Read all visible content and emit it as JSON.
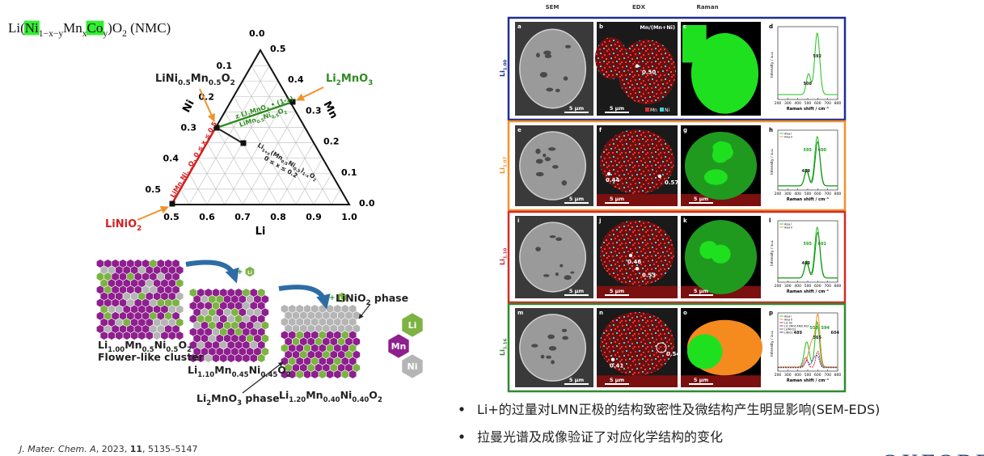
{
  "header": {
    "formula": [
      {
        "t": "Li("
      },
      {
        "t": "Ni",
        "s": "hl"
      },
      {
        "t": "1−x−y",
        "s": "sub"
      },
      {
        "t": "Mn"
      },
      {
        "t": "x",
        "s": "sub"
      },
      {
        "t": "Co",
        "s": "hl"
      },
      {
        "t": "y",
        "s": "sub"
      },
      {
        "t": ")O"
      },
      {
        "t": "2",
        "s": "sub"
      },
      {
        "t": " (NMC)"
      }
    ]
  },
  "ternary": {
    "top_tick": "0.0",
    "left_axis": "Ni",
    "right_axis": "Mn",
    "bottom_axis": "Li",
    "left_ticks": [
      "0.1",
      "0.2",
      "0.3",
      "0.4",
      "0.5"
    ],
    "right_ticks": [
      "0.5",
      "0.4",
      "0.3",
      "0.2",
      "0.1",
      "0.0"
    ],
    "bottom_ticks": [
      "0.5",
      "0.6",
      "0.7",
      "0.8",
      "0.9",
      "1.0"
    ],
    "compounds": [
      {
        "parts": [
          {
            "t": "LiNi"
          },
          {
            "t": "0.5",
            "s": "sub"
          },
          {
            "t": "Mn"
          },
          {
            "t": "0.5",
            "s": "sub"
          },
          {
            "t": "O"
          },
          {
            "t": "2",
            "s": "sub"
          }
        ],
        "color": "#222222"
      },
      {
        "parts": [
          {
            "t": "Li"
          },
          {
            "t": "2",
            "s": "sub"
          },
          {
            "t": "MnO"
          },
          {
            "t": "3",
            "s": "sub"
          }
        ],
        "color": "#2e8b22"
      },
      {
        "parts": [
          {
            "t": "LiNiO"
          },
          {
            "t": "2",
            "s": "sub"
          }
        ],
        "color": "#d42020"
      }
    ],
    "annotations": [
      {
        "parts": [
          {
            "t": "z Li"
          },
          {
            "t": "2",
            "s": "sub"
          },
          {
            "t": "MnO"
          },
          {
            "t": "3",
            "s": "sub"
          },
          {
            "t": " • (1-z)"
          }
        ],
        "color": "#2e8b22"
      },
      {
        "parts": [
          {
            "t": "LiMn"
          },
          {
            "t": "0.5",
            "s": "sub"
          },
          {
            "t": "Ni"
          },
          {
            "t": "0.5",
            "s": "sub"
          },
          {
            "t": "O"
          },
          {
            "t": "2",
            "s": "sub"
          }
        ],
        "color": "#2e8b22"
      },
      {
        "parts": [
          {
            "t": "LiMn"
          },
          {
            "t": "x",
            "s": "sub"
          },
          {
            "t": "Ni"
          },
          {
            "t": "1-x",
            "s": "sub"
          },
          {
            "t": "O"
          },
          {
            "t": "2",
            "s": "sub"
          },
          {
            "t": " 0 ≤ x ≤ 0.5"
          }
        ],
        "color": "#d42020"
      },
      {
        "parts": [
          {
            "t": "Li"
          },
          {
            "t": "1+x",
            "s": "sub"
          },
          {
            "t": "(Mn"
          },
          {
            "t": "0.5",
            "s": "sub"
          },
          {
            "t": "Ni"
          },
          {
            "t": "0.5",
            "s": "sub"
          },
          {
            "t": ")"
          },
          {
            "t": "1-x",
            "s": "sub"
          },
          {
            "t": "O"
          },
          {
            "t": "2",
            "s": "sub"
          }
        ],
        "color": "#222222"
      },
      {
        "parts": [
          {
            "t": "0 ≤ x ≤ 0.2"
          }
        ],
        "color": "#222222"
      }
    ]
  },
  "structures": {
    "labels": [
      {
        "parts": [
          {
            "t": "Li"
          },
          {
            "t": "1.00",
            "s": "sub"
          },
          {
            "t": "Mn"
          },
          {
            "t": "0.5",
            "s": "sub"
          },
          {
            "t": "Ni"
          },
          {
            "t": "0.5",
            "s": "sub"
          },
          {
            "t": "O"
          },
          {
            "t": "2",
            "s": "sub"
          }
        ]
      },
      {
        "parts": [
          {
            "t": "Flower-like cluster"
          }
        ]
      },
      {
        "parts": [
          {
            "t": "Li"
          },
          {
            "t": "1.10",
            "s": "sub"
          },
          {
            "t": "Mn"
          },
          {
            "t": "0.45",
            "s": "sub"
          },
          {
            "t": "Ni"
          },
          {
            "t": "0.45",
            "s": "sub"
          },
          {
            "t": "O"
          },
          {
            "t": "2",
            "s": "sub"
          }
        ]
      },
      {
        "parts": [
          {
            "t": "Li"
          },
          {
            "t": "2",
            "s": "sub"
          },
          {
            "t": "MnO"
          },
          {
            "t": "3",
            "s": "sub"
          },
          {
            "t": " phase"
          }
        ]
      },
      {
        "parts": [
          {
            "t": "Li"
          },
          {
            "t": "1.20",
            "s": "sub"
          },
          {
            "t": "Mn"
          },
          {
            "t": "0.40",
            "s": "sub"
          },
          {
            "t": "Ni"
          },
          {
            "t": "0.40",
            "s": "sub"
          },
          {
            "t": "O"
          },
          {
            "t": "2",
            "s": "sub"
          }
        ]
      },
      {
        "parts": [
          {
            "t": "LiNiO"
          },
          {
            "t": "2",
            "s": "sub"
          },
          {
            "t": " phase"
          }
        ]
      }
    ],
    "plus": "+",
    "legend": [
      {
        "name": "Li",
        "color": "#7cb342"
      },
      {
        "name": "Mn",
        "color": "#8e1f8e"
      },
      {
        "name": "Ni",
        "color": "#b5b5b5"
      }
    ]
  },
  "figure": {
    "headers": [
      "SEM",
      "EDX",
      "Raman"
    ],
    "edx_title": "Mn/(Mn+Ni)",
    "edx_legend": [
      "Mn",
      "Ni"
    ],
    "scale": "5 μm",
    "plot_xticks": [
      "200",
      "300",
      "400",
      "500",
      "600",
      "700",
      "800"
    ],
    "plot_xlabel": "Raman shift / cm⁻¹",
    "plot_ylabel": "Intensity / a.u.",
    "rows": [
      {
        "label": [
          {
            "t": "Li"
          },
          {
            "t": "1.00",
            "s": "sub"
          }
        ],
        "color": "#1f2f8f",
        "letters": [
          "a",
          "b",
          "c",
          "d"
        ],
        "edx_values": [
          "0.50"
        ],
        "peaks": [
          "592",
          "508"
        ],
        "legend": []
      },
      {
        "label": [
          {
            "t": "Li"
          },
          {
            "t": "1.07",
            "s": "sub"
          }
        ],
        "color": "#f0922b",
        "letters": [
          "e",
          "f",
          "g",
          "h"
        ],
        "edx_values": [
          "0.44",
          "0.57"
        ],
        "peaks": [
          "595",
          "600",
          "489"
        ],
        "legend": [
          "Area I",
          "Area II"
        ]
      },
      {
        "label": [
          {
            "t": "Li"
          },
          {
            "t": "1.10",
            "s": "sub"
          }
        ],
        "color": "#d42a2a",
        "letters": [
          "i",
          "j",
          "k",
          "l"
        ],
        "edx_values": [
          "0.46",
          "0.53"
        ],
        "peaks": [
          "595",
          "602",
          "489"
        ],
        "legend": [
          "Area I",
          "Area II"
        ]
      },
      {
        "label": [
          {
            "t": "Li"
          },
          {
            "t": "1.16",
            "s": "sub"
          }
        ],
        "color": "#2f8a2f",
        "letters": [
          "m",
          "n",
          "o",
          "p"
        ],
        "edx_values": [
          "0.41",
          "0.54"
        ],
        "peaks": [
          "553",
          "594",
          "604",
          "489",
          "565"
        ],
        "legend": [
          "Area I",
          "Area II",
          "Li1.00",
          "Li1.2Mn0.4Ni0.4O2",
          "Li2MnO3",
          "LiNiO2"
        ]
      }
    ]
  },
  "bullets": [
    "Li+的过量对LMN正极的结构致密性及微结构产生明显影响(SEM-EDS)",
    "拉曼光谱及成像验证了对应化学结构的变化"
  ],
  "citation": [
    {
      "t": "J. Mater. Chem. A",
      "s": "it"
    },
    {
      "t": ", 2023, "
    },
    {
      "t": "11",
      "s": "b"
    },
    {
      "t": ", 5135–5147"
    }
  ],
  "logo": "OXFORD"
}
